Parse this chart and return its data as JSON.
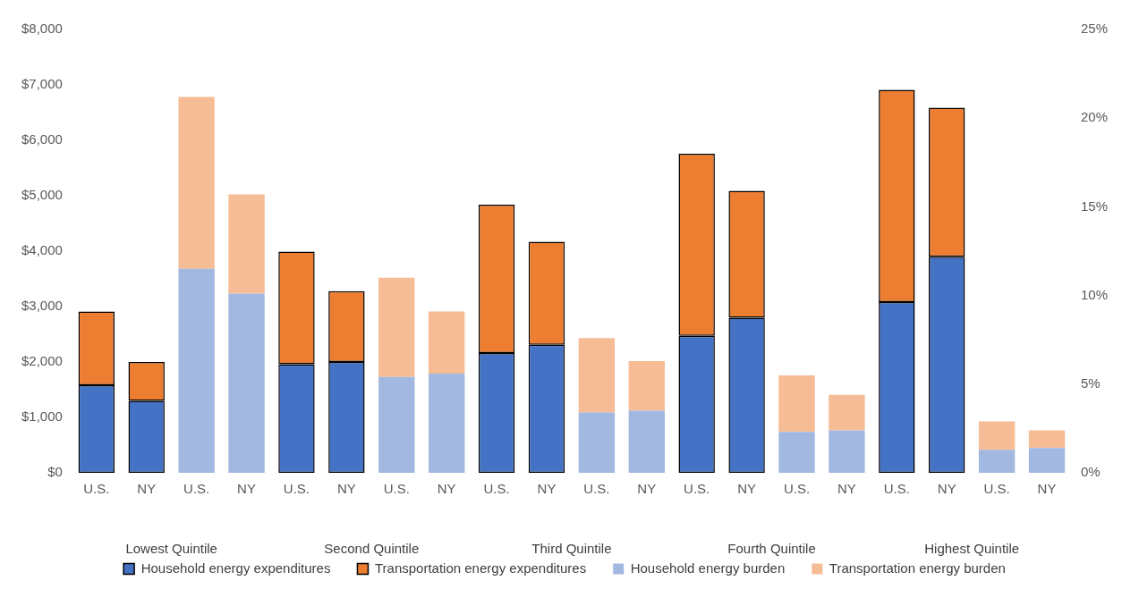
{
  "chart_data": {
    "type": "bar",
    "stacked": true,
    "categories": [
      "U.S.",
      "NY",
      "U.S.",
      "NY",
      "U.S.",
      "NY",
      "U.S.",
      "NY",
      "U.S.",
      "NY",
      "U.S.",
      "NY",
      "U.S.",
      "NY",
      "U.S.",
      "NY",
      "U.S.",
      "NY",
      "U.S.",
      "NY"
    ],
    "annotations": [
      "Lowest Quintile",
      "Second Quintile",
      "Third Quintile",
      "Fourth Quintile",
      "Highest Quintile"
    ],
    "series": [
      {
        "name": "Household energy expenditures",
        "color": "#4472c4",
        "values": [
          1580,
          1300,
          null,
          null,
          1960,
          2000,
          null,
          null,
          2160,
          2310,
          null,
          null,
          2470,
          2800,
          null,
          null,
          3080,
          3900,
          null,
          null
        ]
      },
      {
        "name": "Transportation energy expenditures",
        "color": "#ed7d31",
        "values": [
          1330,
          700,
          null,
          null,
          2030,
          1280,
          null,
          null,
          2680,
          1860,
          null,
          null,
          3290,
          2290,
          null,
          null,
          3830,
          2690,
          null,
          null
        ]
      },
      {
        "name": "Household energy burden",
        "color": "#a3b8e0",
        "axis": "y2",
        "values": [
          null,
          null,
          11.5,
          10.1,
          null,
          null,
          5.4,
          5.6,
          null,
          null,
          3.4,
          3.5,
          null,
          null,
          2.3,
          2.4,
          null,
          null,
          1.3,
          1.4
        ]
      },
      {
        "name": "Transportation energy burden",
        "color": "#f5bc96",
        "axis": "y2",
        "values": [
          null,
          null,
          9.7,
          5.6,
          null,
          null,
          5.6,
          3.5,
          null,
          null,
          4.2,
          2.8,
          null,
          null,
          3.2,
          2.0,
          null,
          null,
          1.6,
          1.0
        ]
      }
    ],
    "ylim": [
      0,
      8000
    ],
    "yticks": [
      {
        "value": 0,
        "label": "$0"
      },
      {
        "value": 1000,
        "label": "$1,000"
      },
      {
        "value": 2000,
        "label": "$2,000"
      },
      {
        "value": 3000,
        "label": "$3,000"
      },
      {
        "value": 4000,
        "label": "$4,000"
      },
      {
        "value": 5000,
        "label": "$5,000"
      },
      {
        "value": 6000,
        "label": "$6,000"
      },
      {
        "value": 7000,
        "label": "$7,000"
      },
      {
        "value": 8000,
        "label": "$8,000"
      }
    ],
    "y2lim": [
      0,
      25
    ],
    "y2ticks": [
      {
        "value": 0,
        "label": "0%"
      },
      {
        "value": 5,
        "label": "5%"
      },
      {
        "value": 10,
        "label": "10%"
      },
      {
        "value": 15,
        "label": "15%"
      },
      {
        "value": 20,
        "label": "20%"
      },
      {
        "value": 25,
        "label": "25%"
      }
    ],
    "grid": false,
    "legend": "bottom"
  }
}
